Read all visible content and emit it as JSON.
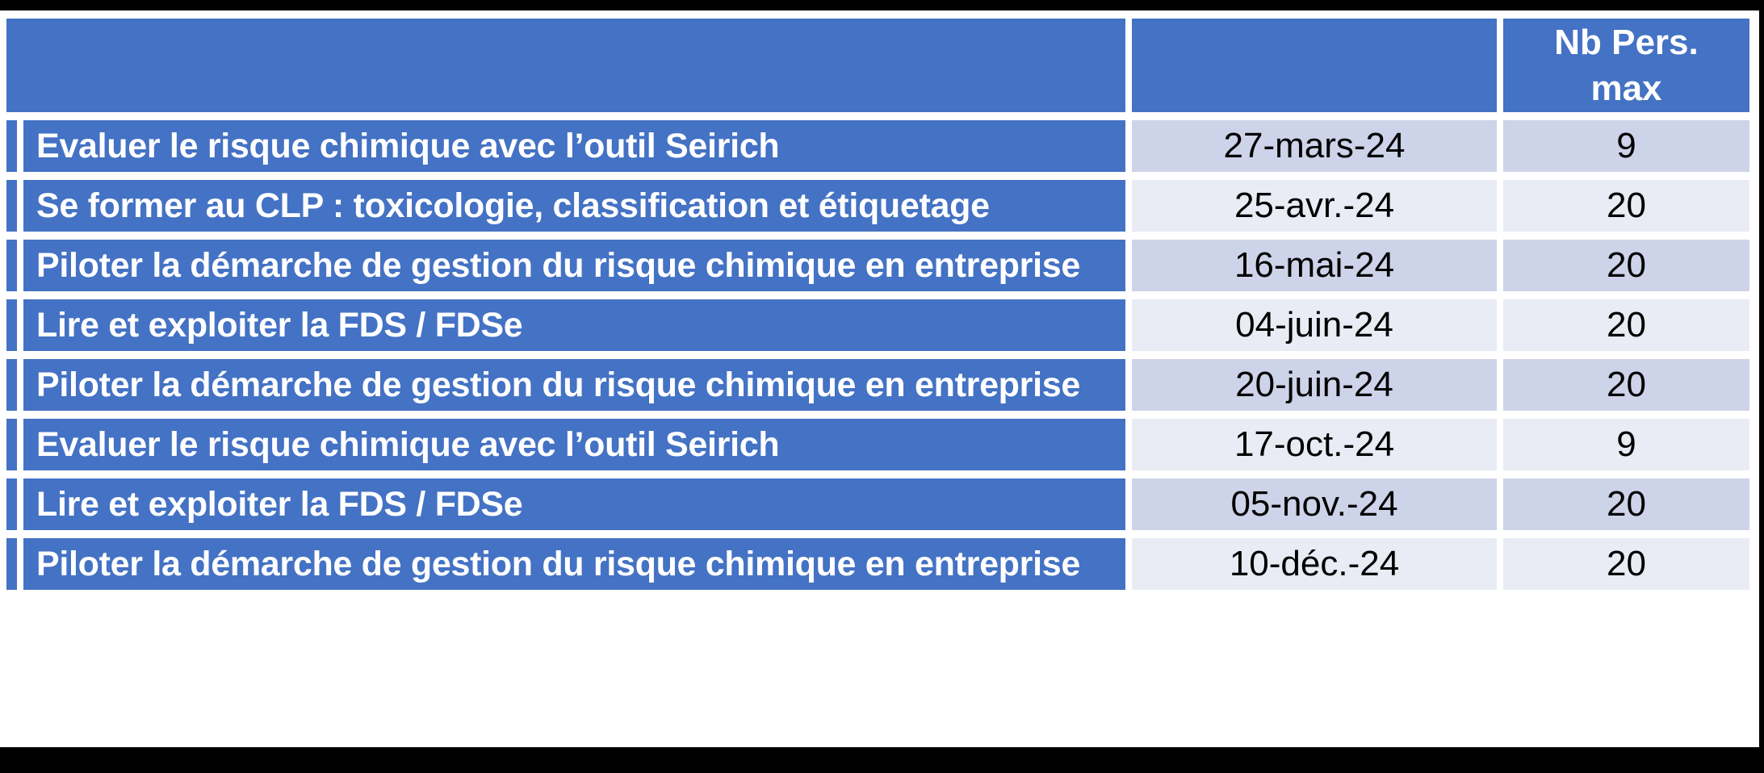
{
  "colors": {
    "header_blue": "#4472C4",
    "row_band_dark": "#CDD3E8",
    "row_band_light": "#E9EBF5",
    "grid_lines": "#FFFFFF",
    "outer_frame": "#000000",
    "text_on_blue": "#FFFFFF",
    "text_on_band": "#000000"
  },
  "table": {
    "header": {
      "training": "",
      "date": "",
      "max": "Nb Pers.\nmax"
    },
    "rows": [
      {
        "training": "Evaluer le risque chimique avec l’outil Seirich",
        "date": "27-mars-24",
        "max": "9"
      },
      {
        "training": "Se former au CLP : toxicologie, classification et étiquetage",
        "date": "25-avr.-24",
        "max": "20"
      },
      {
        "training": "Piloter la démarche de gestion du risque chimique en entreprise",
        "date": "16-mai-24",
        "max": "20"
      },
      {
        "training": "Lire et exploiter la FDS / FDSe",
        "date": "04-juin-24",
        "max": "20"
      },
      {
        "training": "Piloter la démarche de gestion du risque chimique en entreprise",
        "date": "20-juin-24",
        "max": "20"
      },
      {
        "training": "Evaluer le risque chimique avec l’outil Seirich",
        "date": "17-oct.-24",
        "max": "9"
      },
      {
        "training": "Lire et exploiter la FDS / FDSe",
        "date": "05-nov.-24",
        "max": "20"
      },
      {
        "training": "Piloter la démarche de gestion du risque chimique en entreprise",
        "date": "10-déc.-24",
        "max": "20"
      }
    ]
  }
}
